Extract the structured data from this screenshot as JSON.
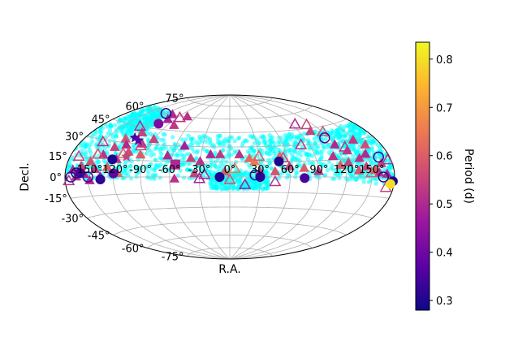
{
  "chart_data": {
    "type": "scatter",
    "projection": "hammer-aitoff",
    "xlabel": "R.A.",
    "ylabel": "Decl.",
    "colorbar": {
      "label": "Period (d)",
      "range": [
        0.28,
        0.835
      ],
      "ticks": [
        "0.3",
        "0.4",
        "0.5",
        "0.6",
        "0.7",
        "0.8"
      ],
      "tick_values": [
        0.3,
        0.4,
        0.5,
        0.6,
        0.7,
        0.8
      ],
      "colormap": "plasma",
      "stops": [
        "#0d0887",
        "#5c01a6",
        "#9c179e",
        "#cc4778",
        "#ed7953",
        "#fdb42f",
        "#f0f921"
      ]
    },
    "lon_ticks": [
      {
        "label": "-150°",
        "lon": -150
      },
      {
        "label": "-120°",
        "lon": -120
      },
      {
        "label": "-90°",
        "lon": -90
      },
      {
        "label": "-60°",
        "lon": -60
      },
      {
        "label": "-30°",
        "lon": -30
      },
      {
        "label": "0°",
        "lon": 0
      },
      {
        "label": "30°",
        "lon": 30
      },
      {
        "label": "60°",
        "lon": 60
      },
      {
        "label": "90°",
        "lon": 90
      },
      {
        "label": "120°",
        "lon": 120
      },
      {
        "label": "150°",
        "lon": 150
      }
    ],
    "lat_ticks": [
      {
        "label": "75°",
        "lat": 75
      },
      {
        "label": "60°",
        "lat": 60
      },
      {
        "label": "45°",
        "lat": 45
      },
      {
        "label": "30°",
        "lat": 30
      },
      {
        "label": "15°",
        "lat": 15
      },
      {
        "label": "0°",
        "lat": 0
      },
      {
        "label": "-15°",
        "lat": -15
      },
      {
        "label": "-30°",
        "lat": -30
      },
      {
        "label": "-45°",
        "lat": -45
      },
      {
        "label": "-60°",
        "lat": -60
      },
      {
        "label": "-75°",
        "lat": -75
      }
    ],
    "background_color": "#00ffff",
    "background_seed": 7,
    "background_count": 1800,
    "background_bands": [
      {
        "lon_min": -180,
        "lon_max": 180,
        "lat_min": -2,
        "lat_max": 42,
        "weight": 0.6
      },
      {
        "lon_min": -170,
        "lon_max": -110,
        "lat_min": 40,
        "lat_max": 62,
        "weight": 0.15
      },
      {
        "lon_min": -20,
        "lon_max": 40,
        "lat_min": -12,
        "lat_max": 5,
        "weight": 0.15
      },
      {
        "lon_min": 120,
        "lon_max": 180,
        "lat_min": -5,
        "lat_max": 40,
        "weight": 0.1
      }
    ],
    "series": [
      {
        "name": "filled triangles",
        "marker": "triangle-filled",
        "points": [
          {
            "lon": -170,
            "lat": 5,
            "period": 0.5
          },
          {
            "lon": -165,
            "lat": 0,
            "period": 0.52
          },
          {
            "lon": -160,
            "lat": 8,
            "period": 0.55
          },
          {
            "lon": -155,
            "lat": 2,
            "period": 0.48
          },
          {
            "lon": -150,
            "lat": 12,
            "period": 0.58
          },
          {
            "lon": -148,
            "lat": -3,
            "period": 0.5
          },
          {
            "lon": -142,
            "lat": 6,
            "period": 0.53
          },
          {
            "lon": -138,
            "lat": 18,
            "period": 0.52
          },
          {
            "lon": -135,
            "lat": 0,
            "period": 0.47
          },
          {
            "lon": -130,
            "lat": 25,
            "period": 0.55
          },
          {
            "lon": -128,
            "lat": 8,
            "period": 0.6
          },
          {
            "lon": -125,
            "lat": 33,
            "period": 0.58
          },
          {
            "lon": -120,
            "lat": 15,
            "period": 0.52
          },
          {
            "lon": -118,
            "lat": 28,
            "period": 0.5
          },
          {
            "lon": -115,
            "lat": 3,
            "period": 0.62
          },
          {
            "lon": -112,
            "lat": 40,
            "period": 0.55
          },
          {
            "lon": -110,
            "lat": 22,
            "period": 0.57
          },
          {
            "lon": -105,
            "lat": 60,
            "period": 0.5
          },
          {
            "lon": -100,
            "lat": 30,
            "period": 0.52
          },
          {
            "lon": -100,
            "lat": 55,
            "period": 0.48
          },
          {
            "lon": -95,
            "lat": 20,
            "period": 0.6
          },
          {
            "lon": -90,
            "lat": 35,
            "period": 0.55
          },
          {
            "lon": -80,
            "lat": 50,
            "period": 0.53
          },
          {
            "lon": -75,
            "lat": 60,
            "period": 0.52
          },
          {
            "lon": -65,
            "lat": 20,
            "period": 0.5
          },
          {
            "lon": -50,
            "lat": 30,
            "period": 0.48
          },
          {
            "lon": -40,
            "lat": 18,
            "period": 0.55
          },
          {
            "lon": -30,
            "lat": 15,
            "period": 0.52
          },
          {
            "lon": -20,
            "lat": 22,
            "period": 0.5
          },
          {
            "lon": -10,
            "lat": 22,
            "period": 0.53
          },
          {
            "lon": -5,
            "lat": 5,
            "period": 0.6
          },
          {
            "lon": 10,
            "lat": 22,
            "period": 0.52
          },
          {
            "lon": 20,
            "lat": 18,
            "period": 0.62
          },
          {
            "lon": 25,
            "lat": 15,
            "period": 0.65
          },
          {
            "lon": 30,
            "lat": 5,
            "period": 0.55
          },
          {
            "lon": 45,
            "lat": 5,
            "period": 0.58
          },
          {
            "lon": 60,
            "lat": 10,
            "period": 0.55
          },
          {
            "lon": 75,
            "lat": 8,
            "period": 0.6
          },
          {
            "lon": 90,
            "lat": 5,
            "period": 0.52
          },
          {
            "lon": 105,
            "lat": 42,
            "period": 0.55
          },
          {
            "lon": 110,
            "lat": 18,
            "period": 0.52
          },
          {
            "lon": 115,
            "lat": 10,
            "period": 0.6
          },
          {
            "lon": 120,
            "lat": 28,
            "period": 0.5
          },
          {
            "lon": 125,
            "lat": 12,
            "period": 0.55
          },
          {
            "lon": 130,
            "lat": 22,
            "period": 0.53
          },
          {
            "lon": 135,
            "lat": 5,
            "period": 0.58
          },
          {
            "lon": 140,
            "lat": 15,
            "period": 0.52
          },
          {
            "lon": 145,
            "lat": 8,
            "period": 0.55
          },
          {
            "lon": 150,
            "lat": 18,
            "period": 0.5
          },
          {
            "lon": 155,
            "lat": 5,
            "period": 0.6
          },
          {
            "lon": 160,
            "lat": 3,
            "period": 0.52
          },
          {
            "lon": 165,
            "lat": 10,
            "period": 0.55
          },
          {
            "lon": 170,
            "lat": 2,
            "period": 0.5
          },
          {
            "lon": 158,
            "lat": 25,
            "period": 0.57
          },
          {
            "lon": 148,
            "lat": 30,
            "period": 0.53
          },
          {
            "lon": -55,
            "lat": -2,
            "period": 0.52
          },
          {
            "lon": -35,
            "lat": 3,
            "period": 0.55
          },
          {
            "lon": 52,
            "lat": 20,
            "period": 0.63
          }
        ]
      },
      {
        "name": "open triangles",
        "marker": "triangle-open",
        "points": [
          {
            "lon": -175,
            "lat": -3,
            "period": 0.52
          },
          {
            "lon": -168,
            "lat": 15,
            "period": 0.55
          },
          {
            "lon": -150,
            "lat": 28,
            "period": 0.52
          },
          {
            "lon": -145,
            "lat": 18,
            "period": 0.58
          },
          {
            "lon": -125,
            "lat": 45,
            "period": 0.5
          },
          {
            "lon": -115,
            "lat": 20,
            "period": 0.6
          },
          {
            "lon": -100,
            "lat": 28,
            "period": 0.55
          },
          {
            "lon": -85,
            "lat": 58,
            "period": 0.52
          },
          {
            "lon": -25,
            "lat": 2,
            "period": 0.5
          },
          {
            "lon": 0,
            "lat": -3,
            "period": 0.58
          },
          {
            "lon": 5,
            "lat": 8,
            "period": 0.65
          },
          {
            "lon": 30,
            "lat": 20,
            "period": 0.6
          },
          {
            "lon": 45,
            "lat": -5,
            "period": 0.52
          },
          {
            "lon": 55,
            "lat": 18,
            "period": 0.55
          },
          {
            "lon": 80,
            "lat": 30,
            "period": 0.52
          },
          {
            "lon": 95,
            "lat": 50,
            "period": 0.5
          },
          {
            "lon": 110,
            "lat": 48,
            "period": 0.55
          },
          {
            "lon": 120,
            "lat": 40,
            "period": 0.58
          },
          {
            "lon": 130,
            "lat": 25,
            "period": 0.52
          },
          {
            "lon": 150,
            "lat": 3,
            "period": 0.6
          },
          {
            "lon": 170,
            "lat": -8,
            "period": 0.55
          },
          {
            "lon": 175,
            "lat": 12,
            "period": 0.52
          },
          {
            "lon": -30,
            "lat": -2,
            "period": 0.48
          },
          {
            "lon": 15,
            "lat": -8,
            "period": 0.47
          }
        ]
      },
      {
        "name": "filled circles",
        "marker": "circle-filled",
        "points": [
          {
            "lon": -160,
            "lat": 3,
            "period": 0.35
          },
          {
            "lon": -135,
            "lat": -2,
            "period": 0.32
          },
          {
            "lon": -125,
            "lat": 15,
            "period": 0.3
          },
          {
            "lon": -120,
            "lat": 3,
            "period": 0.38
          },
          {
            "lon": -105,
            "lat": 50,
            "period": 0.42
          },
          {
            "lon": -10,
            "lat": 0,
            "period": 0.3
          },
          {
            "lon": 30,
            "lat": 0,
            "period": 0.32
          },
          {
            "lon": 50,
            "lat": 15,
            "period": 0.3
          },
          {
            "lon": 75,
            "lat": -1,
            "period": 0.35
          },
          {
            "lon": 178,
            "lat": -3,
            "period": 0.3
          },
          {
            "lon": 175,
            "lat": -5,
            "period": 0.8
          }
        ]
      },
      {
        "name": "open circles",
        "marker": "circle-open",
        "points": [
          {
            "lon": -172,
            "lat": 0,
            "period": 0.32
          },
          {
            "lon": -165,
            "lat": 3,
            "period": 0.3
          },
          {
            "lon": -150,
            "lat": 0,
            "period": 0.33
          },
          {
            "lon": -120,
            "lat": 60,
            "period": 0.31
          },
          {
            "lon": 25,
            "lat": 2,
            "period": 0.3
          },
          {
            "lon": 115,
            "lat": 35,
            "period": 0.35
          },
          {
            "lon": 165,
            "lat": 15,
            "period": 0.32
          },
          {
            "lon": 165,
            "lat": 0,
            "period": 0.3
          }
        ]
      },
      {
        "name": "filled stars",
        "marker": "star-filled",
        "points": [
          {
            "lon": -115,
            "lat": 35,
            "period": 0.35
          },
          {
            "lon": -108,
            "lat": 33,
            "period": 0.38
          },
          {
            "lon": -110,
            "lat": 18,
            "period": 0.55
          }
        ]
      },
      {
        "name": "filled squares",
        "marker": "square-filled",
        "points": [
          {
            "lon": -55,
            "lat": 12,
            "period": 0.5
          }
        ]
      }
    ]
  }
}
